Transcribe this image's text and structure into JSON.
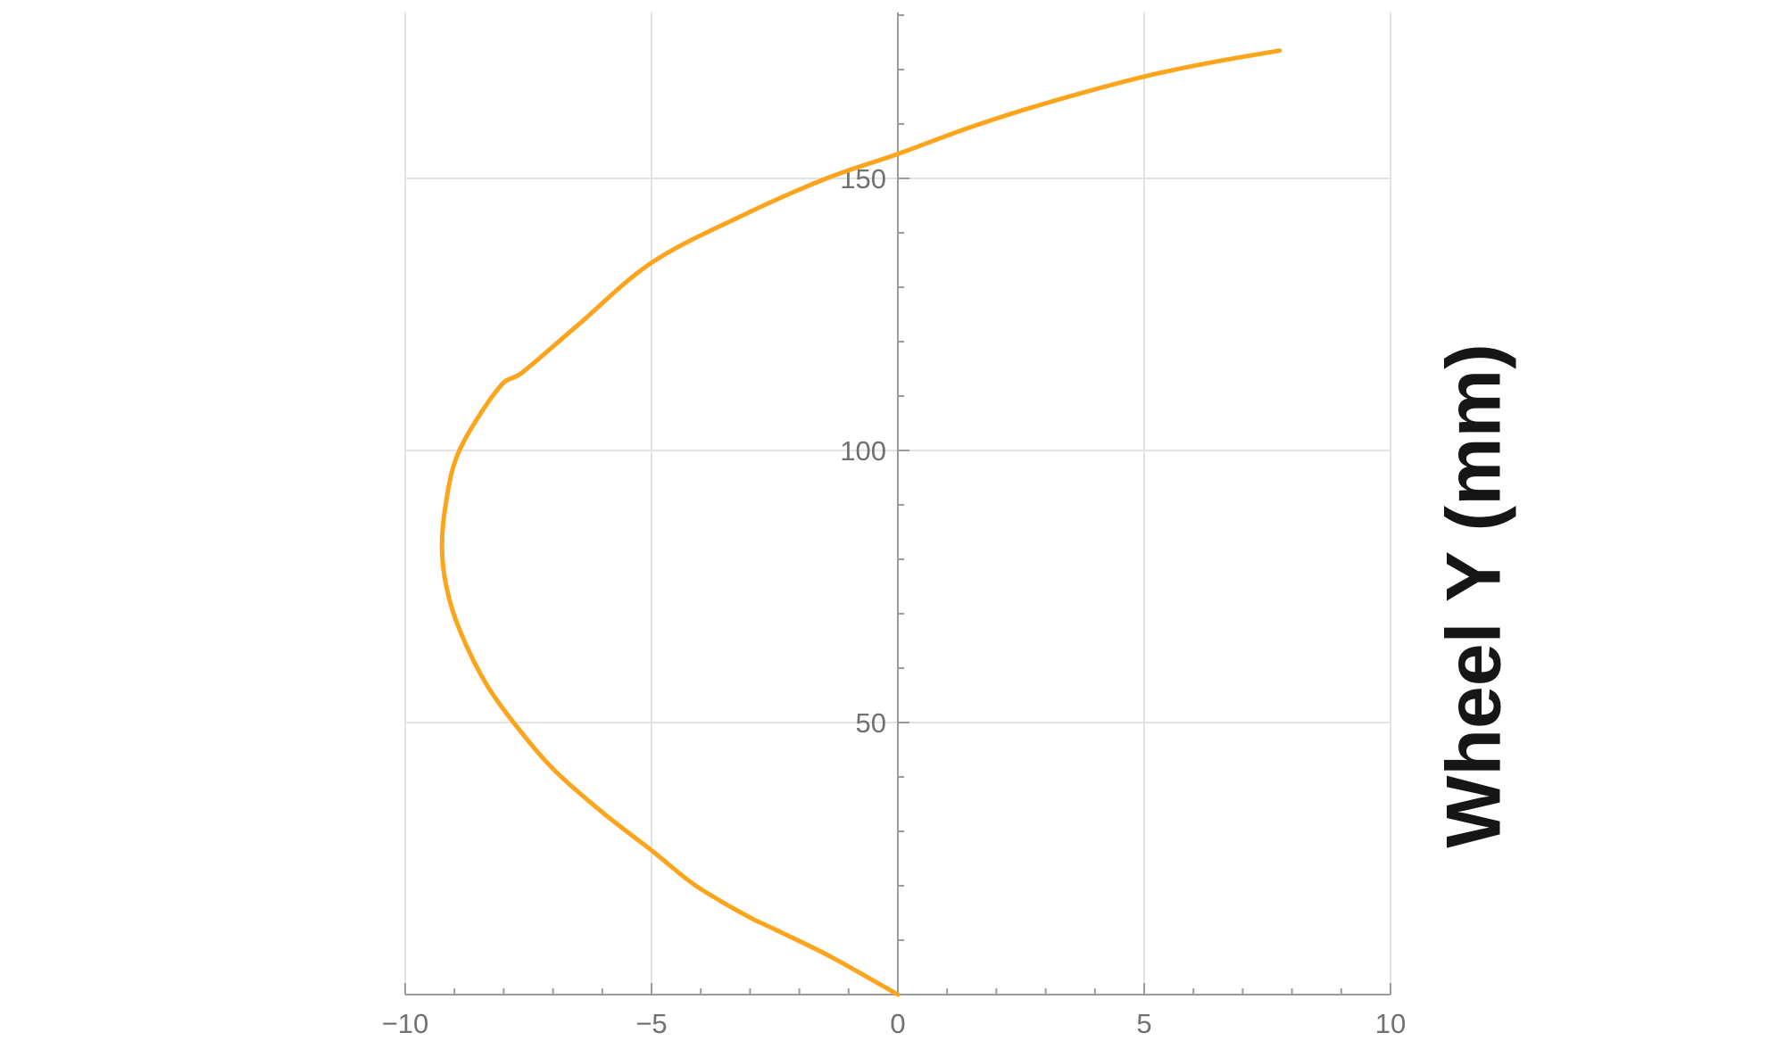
{
  "chart_data": {
    "type": "line",
    "title": "",
    "xlabel": "",
    "ylabel": "Wheel Y (mm)",
    "xlim": [
      -10,
      10
    ],
    "ylim": [
      0,
      180.5
    ],
    "x_major_ticks": [
      -10,
      -5,
      0,
      5,
      10
    ],
    "x_major_labels": [
      "−10",
      "−5",
      "0",
      "5",
      "10"
    ],
    "x_minor_step": 1,
    "y_major_ticks": [
      50,
      100,
      150
    ],
    "y_major_labels": [
      "50",
      "100",
      "150"
    ],
    "y_minor_step": 10,
    "grid": true,
    "legend": null,
    "axes_origin": [
      0,
      0
    ],
    "colors": {
      "curve": "#FBA41C",
      "grid": "#e3e3e3",
      "axis": "#9b9b9b",
      "tick_label": "#717171",
      "axis_title": "#161616",
      "background": "#ffffff"
    },
    "series": [
      {
        "name": "wheel-path-curve",
        "color": "#FBA41C",
        "stroke_width": 5,
        "points": [
          [
            0,
            0
          ],
          [
            -1.35,
            6.9
          ],
          [
            -2.5,
            12
          ],
          [
            -3.05,
            14.4
          ],
          [
            -4.1,
            20
          ],
          [
            -5,
            26.5
          ],
          [
            -6,
            33.5
          ],
          [
            -7,
            41.5
          ],
          [
            -7.8,
            50
          ],
          [
            -8.35,
            57
          ],
          [
            -8.8,
            65
          ],
          [
            -9.1,
            72.5
          ],
          [
            -9.25,
            81
          ],
          [
            -9.18,
            90
          ],
          [
            -8.9,
            100
          ],
          [
            -8.1,
            111.5
          ],
          [
            -7.6,
            114.5
          ],
          [
            -6.5,
            123
          ],
          [
            -5,
            134.5
          ],
          [
            -3.2,
            143
          ],
          [
            -1.45,
            150
          ],
          [
            0,
            154.5
          ],
          [
            1.5,
            159.5
          ],
          [
            3,
            163.8
          ],
          [
            4.9,
            168.5
          ],
          [
            6.3,
            171.2
          ],
          [
            7.75,
            173.5
          ]
        ]
      }
    ]
  }
}
